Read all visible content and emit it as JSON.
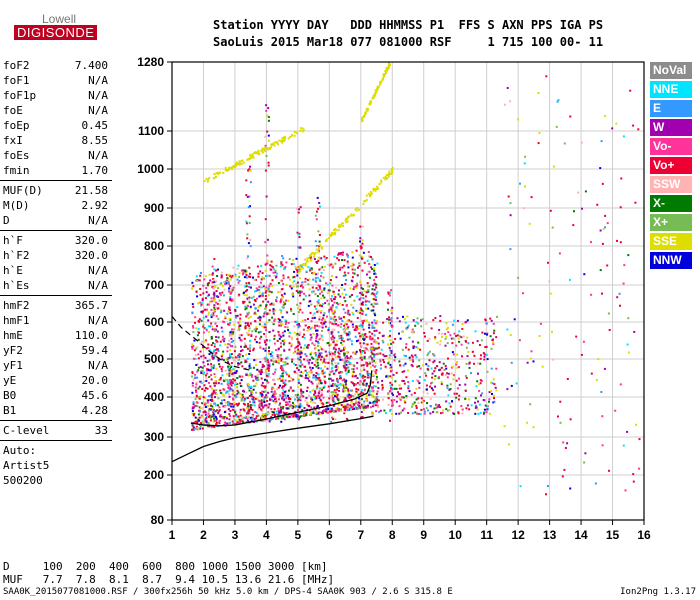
{
  "logo": {
    "top": "Lowell",
    "bottom": "DIGISONDE"
  },
  "header": {
    "line1": "Station YYYY DAY   DDD HHMMSS P1  FFS S AXN PPS IGA PS",
    "line2": "SaoLuis 2015 Mar18 077 081000 RSF     1 715 100 00- 11"
  },
  "params": [
    [
      {
        "name": "foF2",
        "value": "7.400"
      },
      {
        "name": "foF1",
        "value": "N/A"
      },
      {
        "name": "foF1p",
        "value": "N/A"
      },
      {
        "name": "foE",
        "value": "N/A"
      },
      {
        "name": "foEp",
        "value": "0.45"
      },
      {
        "name": "fxI",
        "value": "8.55"
      },
      {
        "name": "foEs",
        "value": "N/A"
      },
      {
        "name": "fmin",
        "value": "1.70"
      }
    ],
    [
      {
        "name": "MUF(D)",
        "value": "21.58"
      },
      {
        "name": "M(D)",
        "value": "2.92"
      },
      {
        "name": "D",
        "value": "N/A"
      }
    ],
    [
      {
        "name": "h`F",
        "value": "320.0"
      },
      {
        "name": "h`F2",
        "value": "320.0"
      },
      {
        "name": "h`E",
        "value": "N/A"
      },
      {
        "name": "h`Es",
        "value": "N/A"
      }
    ],
    [
      {
        "name": "hmF2",
        "value": "365.7"
      },
      {
        "name": "hmF1",
        "value": "N/A"
      },
      {
        "name": "hmE",
        "value": "110.0"
      },
      {
        "name": "yF2",
        "value": "59.4"
      },
      {
        "name": "yF1",
        "value": "N/A"
      },
      {
        "name": "yE",
        "value": "20.0"
      },
      {
        "name": "B0",
        "value": "45.6"
      },
      {
        "name": "B1",
        "value": "4.28"
      }
    ],
    [
      {
        "name": "C-level",
        "value": "33"
      }
    ]
  ],
  "auto_lines": [
    "Auto:",
    "Artist5",
    "500200"
  ],
  "legend": [
    {
      "label": "NoVal",
      "color": "#8c8c8c"
    },
    {
      "label": "NNE",
      "color": "#00e5ff"
    },
    {
      "label": "E",
      "color": "#3399ff"
    },
    {
      "label": "W",
      "color": "#a000b0"
    },
    {
      "label": "Vo-",
      "color": "#ff3399"
    },
    {
      "label": "Vo+",
      "color": "#ee0033"
    },
    {
      "label": "SSW",
      "color": "#ffb3b3"
    },
    {
      "label": "X-",
      "color": "#007a00"
    },
    {
      "label": "X+",
      "color": "#77bb55"
    },
    {
      "label": "SSE",
      "color": "#dddd00"
    },
    {
      "label": "NNW",
      "color": "#0000dd"
    }
  ],
  "bottom": {
    "d_line": "D     100  200  400  600  800 1000 1500 3000 [km]",
    "muf_line": "MUF   7.7  7.8  8.1  8.7  9.4 10.5 13.6 21.6 [MHz]"
  },
  "footer": "SAA0K_2015077081000.RSF / 300fx256h 50 kHz 5.0 km / DPS-4 SAA0K 903 / 2.6 S 315.8 E",
  "version": "Ion2Png 1.3.17",
  "chart_data": {
    "type": "scatter",
    "xlabel": "",
    "ylabel": "",
    "xlim": [
      1,
      16
    ],
    "ylim": [
      80,
      1280
    ],
    "y_scale": "frequency-dependent (ionogram height)",
    "x_ticks": [
      1,
      2,
      3,
      4,
      5,
      6,
      7,
      8,
      9,
      10,
      11,
      12,
      13,
      14,
      15,
      16
    ],
    "y_ticks": [
      80,
      200,
      300,
      400,
      500,
      600,
      700,
      800,
      900,
      1000,
      1100,
      1280
    ],
    "grid": true,
    "legend_position": "right",
    "traces": {
      "profile_solid": [
        [
          1.0,
          235
        ],
        [
          1.5,
          255
        ],
        [
          2.0,
          275
        ],
        [
          2.5,
          288
        ],
        [
          3.0,
          298
        ],
        [
          4.0,
          310
        ],
        [
          5.0,
          322
        ],
        [
          6.0,
          333
        ],
        [
          7.0,
          346
        ],
        [
          7.4,
          352
        ]
      ],
      "profile_dashed": [
        [
          1.0,
          615
        ],
        [
          1.3,
          585
        ],
        [
          1.8,
          550
        ],
        [
          2.2,
          520
        ],
        [
          2.6,
          495
        ],
        [
          3.0,
          480
        ],
        [
          3.5,
          470
        ]
      ],
      "trace_ordinary": [
        [
          1.6,
          335
        ],
        [
          2.0,
          330
        ],
        [
          2.5,
          328
        ],
        [
          3.0,
          330
        ],
        [
          4.0,
          345
        ],
        [
          5.0,
          362
        ],
        [
          6.0,
          378
        ],
        [
          6.8,
          395
        ],
        [
          7.2,
          410
        ],
        [
          7.3,
          430
        ],
        [
          7.35,
          470
        ]
      ],
      "sse_echo": [
        [
          2.0,
          972
        ],
        [
          2.8,
          990
        ],
        [
          3.5,
          1025
        ],
        [
          4.2,
          1060
        ],
        [
          4.6,
          1085
        ],
        [
          5.2,
          1110
        ]
      ]
    }
  }
}
